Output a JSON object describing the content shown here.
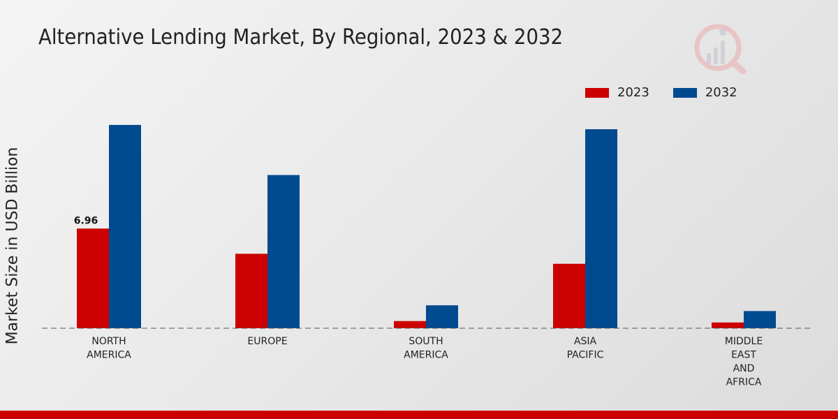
{
  "title": "Alternative Lending Market, By Regional, 2023 & 2032",
  "colors": {
    "series_2023": "#cc0000",
    "series_2032": "#004a8f",
    "footer": "#cc0000"
  },
  "chart_data": {
    "type": "bar",
    "title": "Alternative Lending Market, By Regional, 2023 & 2032",
    "xlabel": "",
    "ylabel": "Market Size in USD Billion",
    "categories": [
      [
        "NORTH",
        "AMERICA"
      ],
      [
        "EUROPE"
      ],
      [
        "SOUTH",
        "AMERICA"
      ],
      [
        "ASIA",
        "PACIFIC"
      ],
      [
        "MIDDLE",
        "EAST",
        "AND",
        "AFRICA"
      ]
    ],
    "series": [
      {
        "name": "2023",
        "values": [
          6.96,
          5.2,
          0.5,
          4.5,
          0.4
        ]
      },
      {
        "name": "2032",
        "values": [
          14.2,
          10.7,
          1.6,
          13.9,
          1.2
        ]
      }
    ],
    "data_labels": [
      {
        "series": 0,
        "index": 0,
        "text": "6.96"
      }
    ],
    "ylim": [
      0,
      20
    ],
    "legend": "top-right",
    "grid": false
  }
}
